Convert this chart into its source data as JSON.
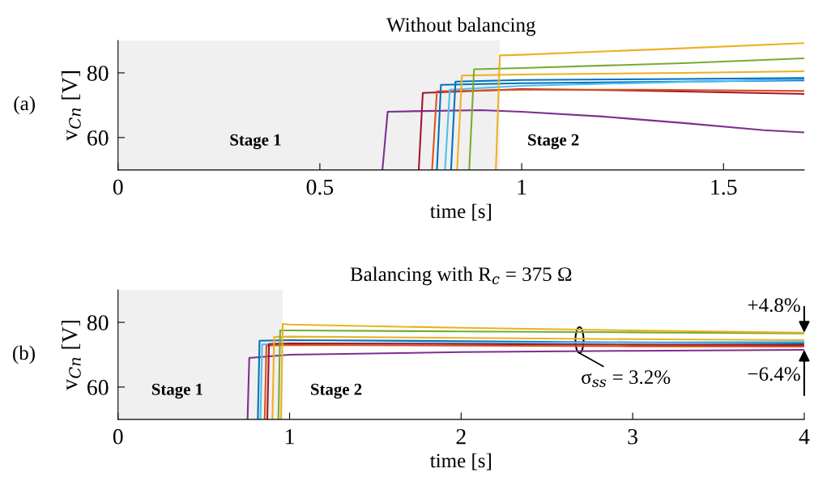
{
  "chart_data": [
    {
      "type": "line",
      "title": "Without balancing",
      "xlabel": "time [s]",
      "ylabel": "v$_{Cn}$ [V]",
      "xlim": [
        0,
        1.7
      ],
      "xticks": [
        0,
        0.5,
        1,
        1.5
      ],
      "ylim": [
        50,
        90
      ],
      "yticks": [
        60,
        80
      ],
      "grid": false,
      "bands": [
        {
          "axis": "x",
          "from": 0,
          "to": 0.946,
          "label": "Stage 1",
          "color": "#f0f0f0"
        }
      ],
      "annotations": [
        "(a)",
        "Stage 2"
      ],
      "series": [
        {
          "color": "#7e2f8e",
          "x": [
            0.655,
            0.668,
            0.9,
            1.0,
            1.2,
            1.4,
            1.6,
            1.7
          ],
          "values": [
            50,
            68.0,
            68.5,
            68.0,
            66.5,
            64.5,
            62.3,
            61.6
          ]
        },
        {
          "color": "#a2142f",
          "x": [
            0.745,
            0.755,
            1.0,
            1.3,
            1.7
          ],
          "values": [
            50,
            73.8,
            75.0,
            74.5,
            73.5
          ]
        },
        {
          "color": "#d95319",
          "x": [
            0.778,
            0.79,
            1.0,
            1.3,
            1.7
          ],
          "values": [
            50,
            74.3,
            74.8,
            74.8,
            74.4
          ]
        },
        {
          "color": "#0072bd",
          "x": [
            0.79,
            0.8,
            1.0,
            1.4,
            1.7
          ],
          "values": [
            50,
            76.3,
            76.8,
            77.3,
            77.7
          ]
        },
        {
          "color": "#4dbeee",
          "x": [
            0.81,
            0.822,
            1.0,
            1.4,
            1.7
          ],
          "values": [
            50,
            74.8,
            76.0,
            77.2,
            78.0
          ]
        },
        {
          "color": "#0072bd",
          "x": [
            0.825,
            0.836,
            1.0,
            1.4,
            1.7
          ],
          "values": [
            50,
            77.3,
            77.8,
            78.1,
            78.4
          ]
        },
        {
          "color": "#edb120",
          "x": [
            0.84,
            0.852,
            1.0,
            1.4,
            1.7
          ],
          "values": [
            50,
            79.2,
            79.5,
            80.0,
            80.5
          ]
        },
        {
          "color": "#77ac30",
          "x": [
            0.87,
            0.882,
            1.0,
            1.4,
            1.7
          ],
          "values": [
            50,
            81.1,
            81.5,
            83.0,
            84.5
          ]
        },
        {
          "color": "#edb120",
          "x": [
            0.936,
            0.946,
            1.0,
            1.4,
            1.7
          ],
          "values": [
            50,
            85.4,
            85.6,
            87.6,
            89.2
          ]
        }
      ]
    },
    {
      "type": "line",
      "title": "Balancing with R$_{c}$ = 375 Ω",
      "xlabel": "time [s]",
      "ylabel": "v$_{Cn}$ [V]",
      "xlim": [
        0,
        4
      ],
      "xticks": [
        0,
        1,
        2,
        3,
        4
      ],
      "ylim": [
        50,
        90
      ],
      "yticks": [
        60,
        80
      ],
      "grid": false,
      "bands": [
        {
          "axis": "x",
          "from": 0,
          "to": 0.96,
          "label": "Stage 1",
          "color": "#f0f0f0"
        }
      ],
      "annotations": [
        "(b)",
        "Stage 2",
        "+4.8%",
        "−6.4%",
        {
          "text": "σ$_{ss}$ = 3.2%",
          "x": 2.69,
          "y": 74.5
        }
      ],
      "series": [
        {
          "color": "#7e2f8e",
          "x": [
            0.755,
            0.765,
            1.0,
            2.0,
            3.0,
            4.0
          ],
          "values": [
            50,
            69.0,
            70.0,
            70.8,
            71.2,
            71.5
          ]
        },
        {
          "color": "#0072bd",
          "x": [
            0.815,
            0.825,
            1.0,
            2.0,
            3.0,
            4.0
          ],
          "values": [
            50,
            74.3,
            74.5,
            74.2,
            73.8,
            73.5
          ]
        },
        {
          "color": "#4dbeee",
          "x": [
            0.83,
            0.84,
            1.0,
            2.0,
            3.0,
            4.0
          ],
          "values": [
            50,
            73.2,
            73.4,
            73.6,
            73.8,
            74.0
          ]
        },
        {
          "color": "#d95319",
          "x": [
            0.855,
            0.865,
            1.0,
            2.0,
            3.0,
            4.0
          ],
          "values": [
            50,
            72.8,
            73.0,
            72.8,
            72.6,
            72.5
          ]
        },
        {
          "color": "#a2142f",
          "x": [
            0.87,
            0.88,
            1.0,
            2.0,
            3.0,
            4.0
          ],
          "values": [
            50,
            73.3,
            73.5,
            73.3,
            73.1,
            73.0
          ]
        },
        {
          "color": "#edb120",
          "x": [
            0.9,
            0.91,
            1.0,
            2.0,
            3.0,
            4.0
          ],
          "values": [
            50,
            75.5,
            75.6,
            75.2,
            74.8,
            74.5
          ]
        },
        {
          "color": "#77ac30",
          "x": [
            0.935,
            0.945,
            1.0,
            2.0,
            3.0,
            4.0
          ],
          "values": [
            50,
            77.5,
            77.5,
            77.2,
            76.9,
            76.6
          ]
        },
        {
          "color": "#edb120",
          "x": [
            0.95,
            0.96,
            1.0,
            2.0,
            3.0,
            4.0
          ],
          "values": [
            50,
            79.5,
            79.3,
            78.3,
            77.5,
            76.8
          ]
        }
      ]
    }
  ]
}
